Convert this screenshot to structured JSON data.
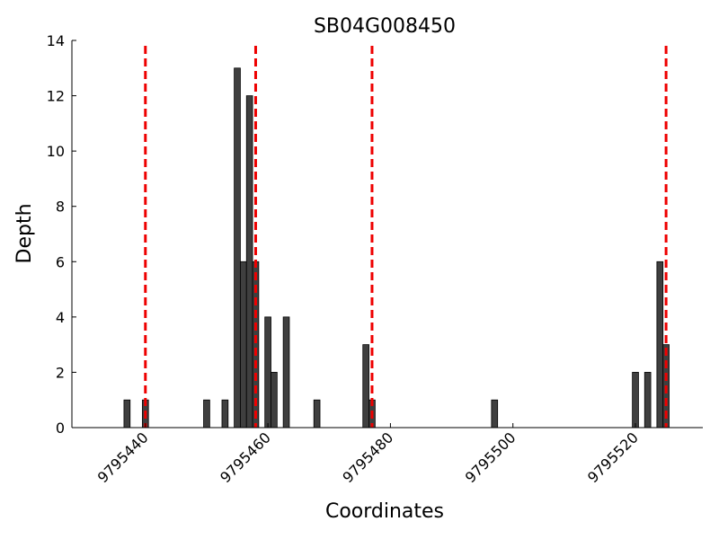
{
  "chart_data": {
    "type": "bar",
    "title": "SB04G008450",
    "xlabel": "Coordinates",
    "ylabel": "Depth",
    "xlim": [
      9795428,
      9795531
    ],
    "ylim": [
      0,
      14
    ],
    "x_ticks": [
      9795440,
      9795460,
      9795480,
      9795500,
      9795520
    ],
    "y_ticks": [
      0,
      2,
      4,
      6,
      8,
      10,
      12,
      14
    ],
    "grid": false,
    "bar_color": "#3f3f3f",
    "bar_edge_color": "#000000",
    "series": [
      {
        "x": [
          9795437,
          9795440,
          9795450,
          9795453,
          9795455,
          9795456,
          9795457,
          9795458,
          9795460,
          9795461,
          9795463,
          9795468,
          9795476,
          9795477,
          9795497,
          9795520,
          9795522,
          9795524,
          9795525
        ],
        "values": [
          1,
          1,
          1,
          1,
          13,
          6,
          12,
          6,
          4,
          2,
          4,
          1,
          3,
          1,
          1,
          2,
          2,
          6,
          3
        ]
      }
    ],
    "reference_lines": {
      "color": "#ee0000",
      "style": "dashed",
      "x": [
        9795440,
        9795458,
        9795477,
        9795525
      ]
    }
  }
}
